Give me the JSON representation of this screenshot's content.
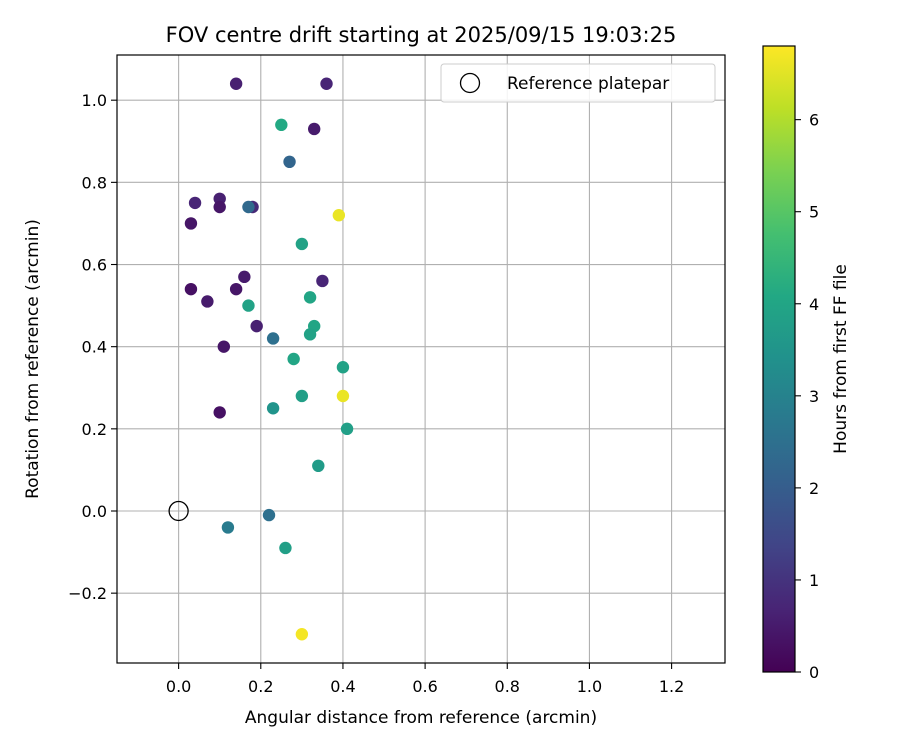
{
  "chart_data": {
    "type": "scatter",
    "title": "FOV centre drift starting at 2025/09/15 19:03:25",
    "xlabel": "Angular distance from reference (arcmin)",
    "ylabel": "Rotation from reference (arcmin)",
    "xlim": [
      -0.15,
      1.33
    ],
    "ylim": [
      -0.37,
      1.11
    ],
    "xticks": [
      0.0,
      0.2,
      0.4,
      0.6,
      0.8,
      1.0,
      1.2
    ],
    "xtick_labels": [
      "0.0",
      "0.2",
      "0.4",
      "0.6",
      "0.8",
      "1.0",
      "1.2"
    ],
    "yticks": [
      -0.2,
      0.0,
      0.2,
      0.4,
      0.6,
      0.8,
      1.0
    ],
    "ytick_labels": [
      "−0.2",
      "0.0",
      "0.2",
      "0.4",
      "0.6",
      "0.8",
      "1.0"
    ],
    "grid": true,
    "legend": {
      "position": "top-right",
      "entries": [
        "Reference platepar"
      ]
    },
    "colormap": "viridis",
    "colorbar": {
      "label": "Hours from first FF file",
      "range": [
        0,
        6.8
      ],
      "ticks": [
        0,
        1,
        2,
        3,
        4,
        5,
        6
      ],
      "tick_labels": [
        "0",
        "1",
        "2",
        "3",
        "4",
        "5",
        "6"
      ]
    },
    "reference_point": {
      "label": "Reference platepar",
      "x": 0.0,
      "y": 0.0
    },
    "points": [
      {
        "x": 0.14,
        "y": 1.04,
        "hours": 0.6
      },
      {
        "x": 0.36,
        "y": 1.04,
        "hours": 0.7
      },
      {
        "x": 0.25,
        "y": 0.94,
        "hours": 4.1
      },
      {
        "x": 0.33,
        "y": 0.93,
        "hours": 0.5
      },
      {
        "x": 0.27,
        "y": 0.85,
        "hours": 2.2
      },
      {
        "x": 0.04,
        "y": 0.75,
        "hours": 0.7
      },
      {
        "x": 0.1,
        "y": 0.76,
        "hours": 0.6
      },
      {
        "x": 0.1,
        "y": 0.74,
        "hours": 0.4
      },
      {
        "x": 0.18,
        "y": 0.74,
        "hours": 0.8
      },
      {
        "x": 0.17,
        "y": 0.74,
        "hours": 2.3
      },
      {
        "x": 0.39,
        "y": 0.72,
        "hours": 6.6
      },
      {
        "x": 0.03,
        "y": 0.7,
        "hours": 0.4
      },
      {
        "x": 0.3,
        "y": 0.65,
        "hours": 3.9
      },
      {
        "x": 0.16,
        "y": 0.57,
        "hours": 0.5
      },
      {
        "x": 0.35,
        "y": 0.56,
        "hours": 0.7
      },
      {
        "x": 0.03,
        "y": 0.54,
        "hours": 0.3
      },
      {
        "x": 0.14,
        "y": 0.54,
        "hours": 0.4
      },
      {
        "x": 0.07,
        "y": 0.51,
        "hours": 0.5
      },
      {
        "x": 0.32,
        "y": 0.52,
        "hours": 4.0
      },
      {
        "x": 0.17,
        "y": 0.5,
        "hours": 3.9
      },
      {
        "x": 0.19,
        "y": 0.45,
        "hours": 0.6
      },
      {
        "x": 0.33,
        "y": 0.45,
        "hours": 4.0
      },
      {
        "x": 0.23,
        "y": 0.42,
        "hours": 2.5
      },
      {
        "x": 0.32,
        "y": 0.43,
        "hours": 3.9
      },
      {
        "x": 0.11,
        "y": 0.4,
        "hours": 0.4
      },
      {
        "x": 0.28,
        "y": 0.37,
        "hours": 4.0
      },
      {
        "x": 0.4,
        "y": 0.35,
        "hours": 3.9
      },
      {
        "x": 0.4,
        "y": 0.28,
        "hours": 6.6
      },
      {
        "x": 0.3,
        "y": 0.28,
        "hours": 3.8
      },
      {
        "x": 0.23,
        "y": 0.25,
        "hours": 3.5
      },
      {
        "x": 0.1,
        "y": 0.24,
        "hours": 0.3
      },
      {
        "x": 0.41,
        "y": 0.2,
        "hours": 3.8
      },
      {
        "x": 0.34,
        "y": 0.11,
        "hours": 3.7
      },
      {
        "x": 0.22,
        "y": -0.01,
        "hours": 2.5
      },
      {
        "x": 0.12,
        "y": -0.04,
        "hours": 2.8
      },
      {
        "x": 0.26,
        "y": -0.09,
        "hours": 3.8
      },
      {
        "x": 0.3,
        "y": -0.3,
        "hours": 6.7
      }
    ]
  }
}
